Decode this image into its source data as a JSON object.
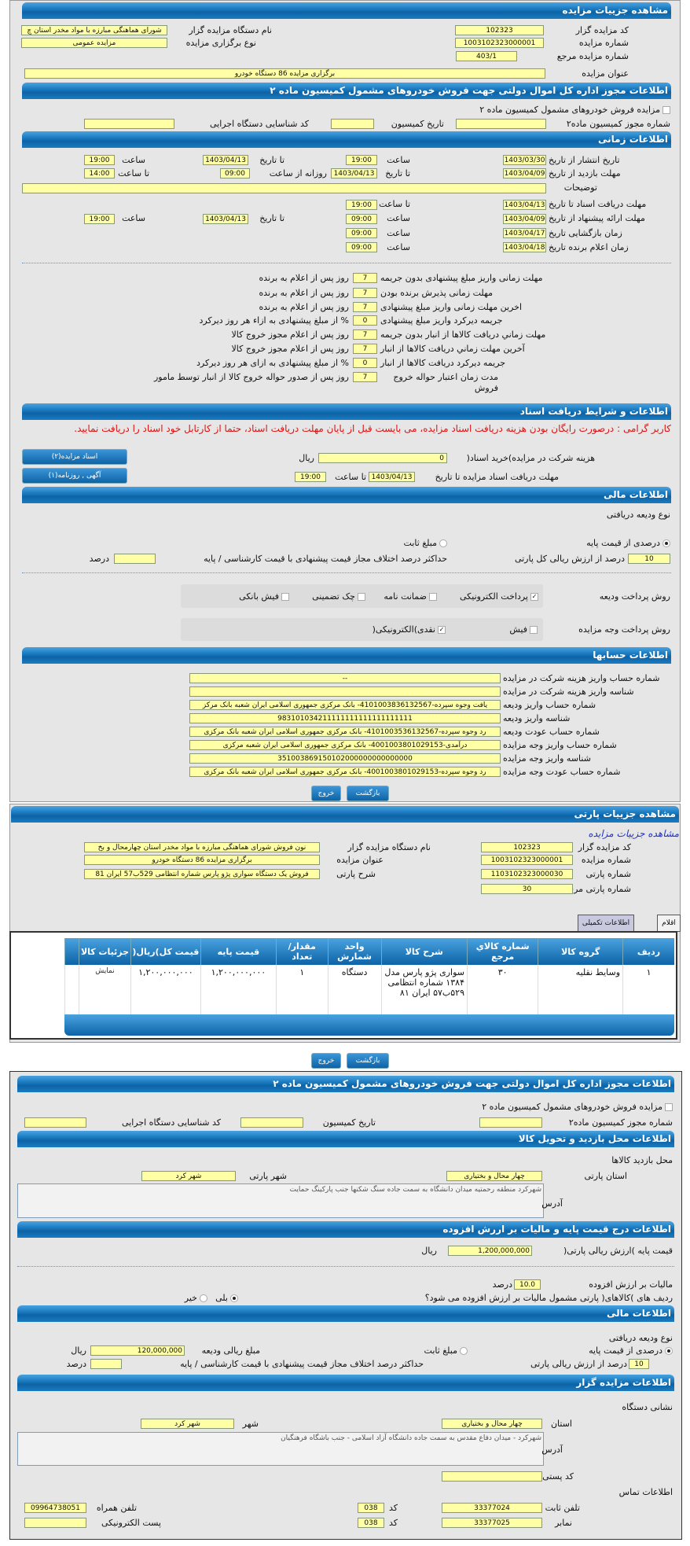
{
  "auction": {
    "header": "مشاهده جزییات مزایده",
    "code_label": "کد مزایده گزار",
    "code": "102323",
    "org_label": "نام دستگاه مزایده گزار",
    "org": "شورای هماهنگی مبارزه با مواد مخدر استان چ",
    "number_label": "شماره مزایده",
    "number": "1003102323000001",
    "type_label": "نوع برگزاری مزایده",
    "type": "مزایده عمومی",
    "ref_label": "شماره مزایده مرجع",
    "ref": "403/1",
    "title_label": "عنوان مزایده",
    "title": "برگزاری مزایده 86 دستگاه خودرو"
  },
  "permit": {
    "header": "اطلاعات مجوز اداره کل اموال دولتی جهت فروش خودروهای مشمول کمیسیون ماده ۲",
    "checkbox_label": "مزایده فروش خودروهای مشمول کمیسیون ماده ۲",
    "permit_no_label": "شماره مجوز کمیسیون ماده۲",
    "commission_date_label": "تاریخ کمیسیون",
    "exec_id_label": "کد شناسایی دستگاه اجرایی"
  },
  "timing": {
    "header": "اطلاعات زمانی",
    "publish_label": "تاریخ انتشار از تاریخ",
    "publish_from": "1403/03/30",
    "time_label": "ساعت",
    "publish_from_time": "19:00",
    "to_date_label": "تا تاریخ",
    "publish_to": "1403/04/13",
    "publish_to_time": "19:00",
    "visit_label": "مهلت بازدید از تاریخ",
    "visit_from": "1403/04/09",
    "visit_to": "1403/04/13",
    "daily_from_label": "روزانه از ساعت",
    "visit_daily_from": "09:00",
    "to_time_label": "تا ساعت",
    "visit_daily_to": "14:00",
    "notes_label": "توضیحات",
    "docs_label": "مهلت دریافت اسناد  تا تاریخ",
    "docs_to": "1403/04/13",
    "docs_to_time": "19:00",
    "offer_label": "مهلت ارائه پیشنهاد از تاریخ",
    "offer_from": "1403/04/09",
    "offer_from_time": "09:00",
    "offer_to": "1403/04/13",
    "offer_to_time": "19:00",
    "opening_label": "زمان بازگشایی   تاریخ",
    "opening": "1403/04/17",
    "opening_time": "09:00",
    "winner_label": "زمان اعلام برنده   تاریخ",
    "winner": "1403/04/18",
    "winner_time": "09:00"
  },
  "deadlines": [
    {
      "label": "مهلت زمانی واریز مبلغ پیشنهادی بدون جریمه",
      "value": "7",
      "suffix": "روز پس از اعلام به برنده"
    },
    {
      "label": "مهلت زمانی پذیرش برنده بودن",
      "value": "7",
      "suffix": "روز پس از اعلام به برنده"
    },
    {
      "label": "اخرین مهلت زمانی واریز مبلغ پیشنهادی",
      "value": "7",
      "suffix": "روز پس از اعلام به برنده"
    },
    {
      "label": "جریمه دیرکرد واریز مبلغ پیشنهادی",
      "value": "0",
      "suffix": "% از مبلغ پیشنهادی به ازاء هر روز دیرکرد"
    },
    {
      "label": "مهلت زماني دريافت كالاها از انبار بدون جريمه",
      "value": "7",
      "suffix": "روز پس از اعلام مجوز خروج کالا"
    },
    {
      "label": "آخرین مهلت زماني دريافت كالاها از انبار",
      "value": "7",
      "suffix": "روز پس از اعلام مجوز خروج کالا"
    },
    {
      "label": "جریمه دیرکرد دریافت کالاها از انبار",
      "value": "0",
      "suffix": "% از مبلغ پیشنهادی به ازای هر روز دیرکرد"
    },
    {
      "label": "مدت زمان اعتبار حواله خروج فروش",
      "value": "7",
      "suffix": "روز پس از صدور حواله خروج کالا از انبار توسط مامور"
    }
  ],
  "documents": {
    "header": "اطلاعات و شرایط دریافت اسناد",
    "warning": "کاربر گرامی : درصورت رایگان بودن هزینه دریافت اسناد مزایده، می بایست قبل از پایان مهلت دریافت اسناد، حتما از کارتابل خود اسناد را دریافت نمایید.",
    "fee_label": "هزینه شرکت در مزایده)خرید اسناد(",
    "fee": "0",
    "rial": "ریال",
    "deadline_label": "مهلت دریافت اسناد مزایده تا تاریخ",
    "deadline_date": "1403/04/13",
    "to_time_label": "تا ساعت",
    "deadline_time": "19:00",
    "docs_button": "اسناد مزایده(۲)",
    "ad_button": "آگهی , روزنامه(۱)"
  },
  "finance": {
    "header": "اطلاعات مالی",
    "deposit_type_label": "نوع ودیعه دریافتی",
    "percent_option": "درصدی از قیمت پایه",
    "fixed_option": "مبلغ ثابت",
    "percent_value": "10",
    "percent_suffix": "درصد از ارزش ریالی کل پارتی",
    "max_diff_label": "حداکثر درصد اختلاف مجاز قیمت پیشنهادی با قیمت کارشناسی / پایه",
    "max_diff": "",
    "percent_unit": "درصد",
    "deposit_method_label": "روش پرداخت ودیعه",
    "deposit_methods": [
      {
        "label": "پرداخت الکترونیکی",
        "checked": true
      },
      {
        "label": "ضمانت نامه",
        "checked": false
      },
      {
        "label": "چک تضمینی",
        "checked": false
      },
      {
        "label": "فیش بانکی",
        "checked": false
      }
    ],
    "payment_method_label": "روش پرداخت وجه مزایده",
    "payment_methods": [
      {
        "label": "فیش",
        "checked": false
      },
      {
        "label": "نقدی)الکترونیکی(",
        "checked": true
      }
    ]
  },
  "accounts": {
    "header": "اطلاعات حسابها",
    "rows": [
      {
        "label": "شماره حساب واریز هزینه شرکت در مزایده",
        "value": "--"
      },
      {
        "label": "شناسه واریز هزینه شرکت در مزایده",
        "value": ""
      },
      {
        "label": "شماره حساب واریز ودیعه",
        "value": "یافت وجوه سپرده-4101003836132567- بانک مرکزی جمهوری اسلامی ایران شعبه بانک مرکز"
      },
      {
        "label": "شناسه واریز ودیعه",
        "value": "983101034211111111111111111111"
      },
      {
        "label": "شماره حساب عودت ودیعه",
        "value": "رد وجوه سپرده-4101003536132567- بانک مرکزی جمهوری اسلامی ایران شعبه بانک مرکزی"
      },
      {
        "label": "شماره حساب واریز وجه مزایده",
        "value": "درآمدی-4001003801029153- بانک مرکزی جمهوری اسلامی ایران شعبه مرکزی"
      },
      {
        "label": "شناسه واریز وجه مزایده",
        "value": "351003869150102000000000000000"
      },
      {
        "label": "شماره حساب عودت وجه مزایده",
        "value": "رد وجوه سپرده-4001003801029153- بانک مرکزی جمهوری اسلامی ایران شعبه بانک مرکزی"
      }
    ]
  },
  "buttons": {
    "back": "بازگشت",
    "exit": "خروج"
  },
  "lot": {
    "header": "مشاهده جزییات پارتی",
    "subtitle": "مشاهده جزییات مزایده",
    "code_label": "کد مزایده گزار",
    "code": "102323",
    "org_label": "نام دستگاه مزایده گزار",
    "org": "نون فروش شورای هماهنگی مبارزه با مواد مخدر استان چهارمحال و بخ",
    "number_label": "شماره مزایده",
    "number": "1003102323000001",
    "title_label": "عنوان مزایده",
    "title": "برگزاری مزایده 86 دستگاه خودرو",
    "lot_no_label": "شماره پارتی",
    "lot_no": "1103102323000030",
    "desc_label": "شرح پارتی",
    "desc": "فروش یک دستگاه سواری پژو پارس شماره انتظامی 529ب57 ایران 81",
    "lot_ref_label": "شماره پارتی مرجع",
    "lot_ref": "30",
    "tabs": [
      "اقلام پارتی",
      "اطلاعات تکمیلی"
    ]
  },
  "items_table": {
    "columns": [
      "ردیف",
      "گروه کالا",
      "شماره کالاي مرجع",
      "شرح کالا",
      "واحد شمارش",
      "مقدار/ تعداد",
      "قیمت پایه",
      "قیمت کل)ریال(",
      "جزئیات کالا"
    ],
    "rows": [
      [
        "۱",
        "وسایط نقلیه",
        "۳۰",
        "سواری پژو پارس مدل ۱۳۸۴ شماره انتظامی ۵۲۹ب۵۷ ایران ۸۱",
        "دستگاه",
        "۱",
        "۱,۲۰۰,۰۰۰,۰۰۰",
        "۱,۲۰۰,۰۰۰,۰۰۰",
        "نمایش"
      ]
    ]
  },
  "lot_permit": {
    "header": "اطلاعات مجوز اداره کل اموال دولتی جهت فروش خودروهای مشمول کمیسیون ماده ۲"
  },
  "visit_place": {
    "header": "اطلاعات محل بازدید و تحویل کالا",
    "title": "محل بازدید کالاها",
    "province_label": "استان پارتی",
    "province": "چهار محال و بختیاری",
    "city_label": "شهر پارتی",
    "city": "شهر کرد",
    "address_label": "آدرس",
    "address": "شهرکرد منطقه رحمتیه  میدان دانشگاه به سمت جاده سنگ شکنها جنب پارکینگ حمایت"
  },
  "pricing": {
    "header": "اطلاعات درج قیمت پایه و مالیات بر اررش  افزوده",
    "base_label": "قیمت پایه )ارزش ریالی پارتی(",
    "base": "1,200,000,000",
    "rial": "ریال",
    "vat_label": "مالیات بر ارزش افزوده",
    "vat": "10.0",
    "percent": "درصد",
    "vat_question": "ردیف های )کالاهای( پارتی مشمول مالیات بر ارزش افزوده می شود؟",
    "yes": "بلی",
    "no": "خیر"
  },
  "lot_finance": {
    "header": "اطلاعات مالی",
    "deposit_amount_label": "مبلغ ریالی ودیعه",
    "deposit_amount": "120,000,000",
    "percent_suffix": "درصد از ارزش ریالی پارتی"
  },
  "auctioneer": {
    "header": "اطلاعات مزایده گزار",
    "address_title": "نشانی دستگاه",
    "province_label": "استان",
    "province": "چهار محال و بختیاری",
    "city_label": "شهر",
    "city": "شهر کرد",
    "address_label": "آدرس",
    "address": "شهرکرد - میدان دفاع مقدس به سمت جاده دانشگاه آزاد اسلامی - جنب باشگاه فرهنگیان",
    "postal_label": "کد پستی",
    "postal": "",
    "contact_title": "اطلاعات تماس",
    "phone_label": "تلفن ثابت",
    "phone": "33377024",
    "code_label": "کد",
    "phone_code": "038",
    "mobile_label": "تلفن همراه",
    "mobile": "09964738051",
    "fax_label": "نمابر",
    "fax": "33377025",
    "fax_code": "038",
    "email_label": "پست الکترونیکی",
    "email": ""
  }
}
